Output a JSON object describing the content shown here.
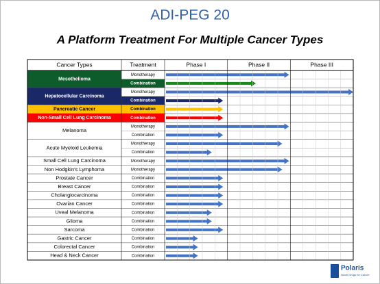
{
  "title": "ADI-PEG 20",
  "subtitle": "A Platform Treatment For Multiple Cancer Types",
  "headers": [
    "Cancer Types",
    "Treatment",
    "Phase I",
    "Phase II",
    "Phase III"
  ],
  "rows": [
    {
      "cancer": "Mesothelioma",
      "fill": "#0e5c2c",
      "treatments": [
        {
          "label": "Monotherapy",
          "progress": 1.98,
          "color": "#4472c4"
        },
        {
          "label": "Combination",
          "progress": 1.45,
          "color": "#178a1a",
          "fill": "#0e5c2c"
        }
      ]
    },
    {
      "cancer": "Hepatocellular Carcinoma",
      "fill": "#1b2868",
      "treatments": [
        {
          "label": "Monotherapy",
          "progress": 3,
          "color": "#4472c4"
        },
        {
          "label": "Combination",
          "progress": 0.93,
          "color": "#1b2868",
          "fill": "#1b2868"
        }
      ]
    },
    {
      "cancer": "Pancreatic Cancer",
      "fill": "#ffc000",
      "treatments": [
        {
          "label": "Combination",
          "progress": 0.93,
          "color": "#ffc000",
          "fill": "#ffc000"
        }
      ]
    },
    {
      "cancer": "Non-Small Cell Lung Carcinoma",
      "fill": "#ff0000",
      "treatments": [
        {
          "label": "Combination",
          "progress": 0.93,
          "color": "#ff0000",
          "fill": "#ff0000"
        }
      ]
    },
    {
      "cancer": "Melanoma",
      "treatments": [
        {
          "label": "Monotherapy",
          "progress": 1.98,
          "color": "#4472c4"
        },
        {
          "label": "Combination",
          "progress": 0.93,
          "color": "#4472c4"
        }
      ]
    },
    {
      "cancer": "Acute Myeloid Leukemia",
      "treatments": [
        {
          "label": "Monotherapy",
          "progress": 1.87,
          "color": "#4472c4"
        },
        {
          "label": "Combination",
          "progress": 0.75,
          "color": "#4472c4"
        }
      ]
    },
    {
      "cancer": "Small Cell Lung Carcinoma",
      "treatments": [
        {
          "label": "Monotherapy",
          "progress": 1.98,
          "color": "#4472c4"
        }
      ]
    },
    {
      "cancer": "Non Hodgkin's Lymphoma",
      "treatments": [
        {
          "label": "Monotherapy",
          "progress": 1.87,
          "color": "#4472c4"
        }
      ]
    },
    {
      "cancer": "Prostate Cancer",
      "treatments": [
        {
          "label": "Combination",
          "progress": 0.93,
          "color": "#4472c4"
        }
      ]
    },
    {
      "cancer": "Breast Cancer",
      "treatments": [
        {
          "label": "Combination",
          "progress": 0.93,
          "color": "#4472c4"
        }
      ]
    },
    {
      "cancer": "Cholangiocarcinoma",
      "treatments": [
        {
          "label": "Combination",
          "progress": 0.93,
          "color": "#4472c4"
        }
      ]
    },
    {
      "cancer": "Ovarian Cancer",
      "treatments": [
        {
          "label": "Combination",
          "progress": 0.93,
          "color": "#4472c4"
        }
      ]
    },
    {
      "cancer": "Uveal Melanoma",
      "treatments": [
        {
          "label": "Combination",
          "progress": 0.75,
          "color": "#4472c4"
        }
      ]
    },
    {
      "cancer": "Glioma",
      "treatments": [
        {
          "label": "Combination",
          "progress": 0.75,
          "color": "#4472c4"
        }
      ]
    },
    {
      "cancer": "Sarcoma",
      "treatments": [
        {
          "label": "Combination",
          "progress": 0.93,
          "color": "#4472c4"
        }
      ]
    },
    {
      "cancer": "Gastric Cancer",
      "treatments": [
        {
          "label": "Combination",
          "progress": 0.53,
          "color": "#4472c4"
        }
      ]
    },
    {
      "cancer": "Colorectal Cancer",
      "treatments": [
        {
          "label": "Combination",
          "progress": 0.53,
          "color": "#4472c4"
        }
      ]
    },
    {
      "cancer": "Head & Neck Cancer",
      "treatments": [
        {
          "label": "Combination",
          "progress": 0.53,
          "color": "#4472c4"
        }
      ]
    }
  ],
  "logo": {
    "name": "Polaris",
    "tagline": "Novel Drugs for Cancer"
  }
}
